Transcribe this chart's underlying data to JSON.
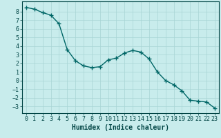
{
  "title": "",
  "xlabel": "Humidex (Indice chaleur)",
  "ylabel": "",
  "x": [
    0,
    1,
    2,
    3,
    4,
    5,
    6,
    7,
    8,
    9,
    10,
    11,
    12,
    13,
    14,
    15,
    16,
    17,
    18,
    19,
    20,
    21,
    22,
    23
  ],
  "y": [
    8.5,
    8.3,
    7.9,
    7.6,
    6.6,
    3.6,
    2.3,
    1.7,
    1.5,
    1.6,
    2.4,
    2.6,
    3.2,
    3.5,
    3.3,
    2.5,
    1.0,
    0.0,
    -0.5,
    -1.2,
    -2.3,
    -2.4,
    -2.5,
    -3.2
  ],
  "line_color": "#006666",
  "bg_color": "#c8ecec",
  "grid_color": "#a8d4d4",
  "tick_color": "#004444",
  "spine_color": "#004444",
  "ylim": [
    -3.8,
    9.2
  ],
  "xlim": [
    -0.5,
    23.5
  ],
  "yticks": [
    -3,
    -2,
    -1,
    0,
    1,
    2,
    3,
    4,
    5,
    6,
    7,
    8
  ],
  "xticks": [
    0,
    1,
    2,
    3,
    4,
    5,
    6,
    7,
    8,
    9,
    10,
    11,
    12,
    13,
    14,
    15,
    16,
    17,
    18,
    19,
    20,
    21,
    22,
    23
  ],
  "marker": "+",
  "markersize": 4,
  "linewidth": 1.0,
  "label_fontsize": 7,
  "tick_fontsize": 6
}
